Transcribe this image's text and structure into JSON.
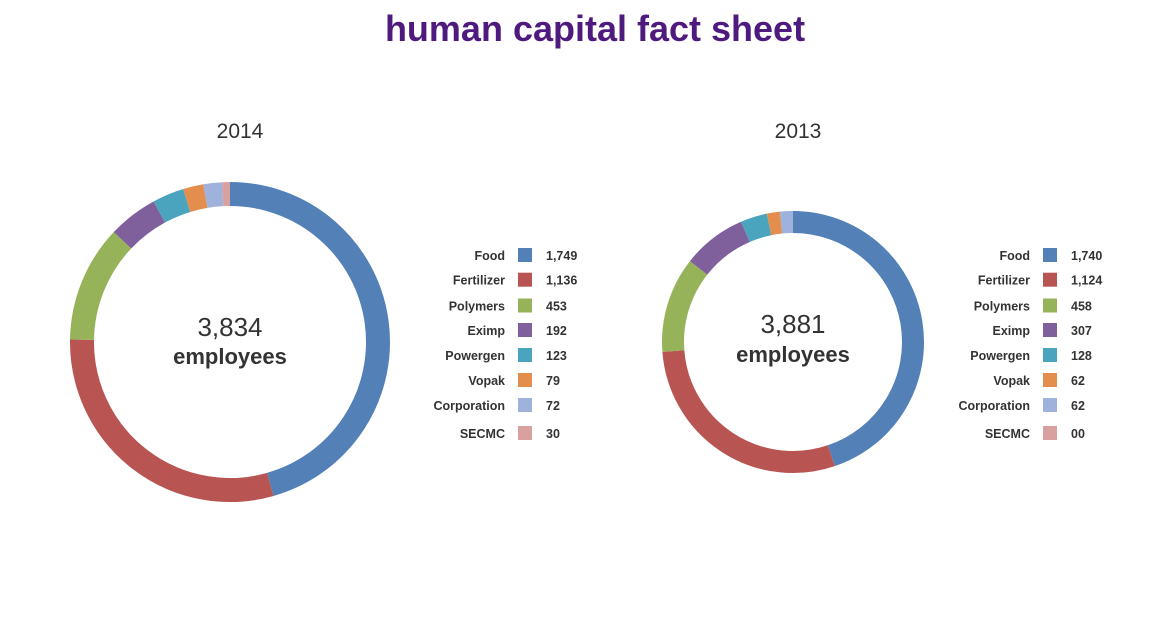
{
  "title": "human capital fact sheet",
  "colors": {
    "title": "#4f1a7e",
    "Food": "#5280b7",
    "Fertilizer": "#b85553",
    "Polymers": "#97b35a",
    "Eximp": "#7f5f9c",
    "Powergen": "#4aa4bd",
    "Vopak": "#e48e4e",
    "Corporation": "#9fb2db",
    "SECMC": "#d9a0a0"
  },
  "chart_data": [
    {
      "type": "pie",
      "title": "2014",
      "total": "3,834",
      "total_unit": "employees",
      "categories": [
        "Food",
        "Fertilizer",
        "Polymers",
        "Eximp",
        "Powergen",
        "Vopak",
        "Corporation",
        "SECMC"
      ],
      "values": [
        1749,
        1136,
        453,
        192,
        123,
        79,
        72,
        30
      ],
      "value_labels": [
        "1,749",
        "1,136",
        "453",
        "192",
        "123",
        "79",
        "72",
        "30"
      ],
      "legend": "right"
    },
    {
      "type": "pie",
      "title": "2013",
      "total": "3,881",
      "total_unit": "employees",
      "categories": [
        "Food",
        "Fertilizer",
        "Polymers",
        "Eximp",
        "Powergen",
        "Vopak",
        "Corporation",
        "SECMC"
      ],
      "values": [
        1740,
        1124,
        458,
        307,
        128,
        62,
        62,
        0
      ],
      "value_labels": [
        "1,740",
        "1,124",
        "458",
        "307",
        "128",
        "62",
        "62",
        "00"
      ],
      "legend": "right"
    }
  ]
}
